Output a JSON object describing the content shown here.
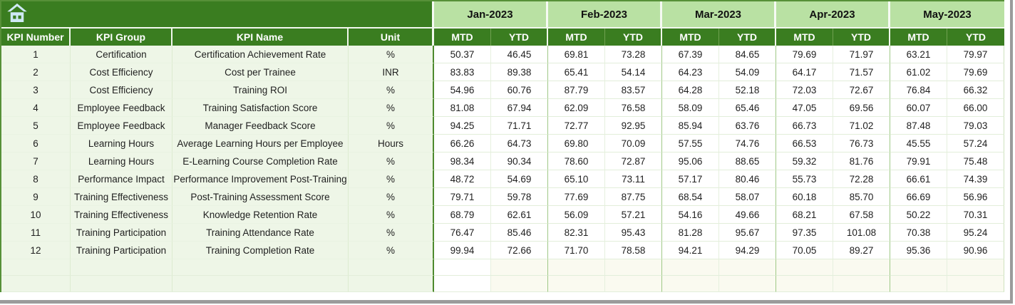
{
  "table": {
    "home_button": {
      "icon": "home-icon"
    },
    "left_headers": [
      "KPI Number",
      "KPI Group",
      "KPI Name",
      "Unit"
    ],
    "months": [
      "Jan-2023",
      "Feb-2023",
      "Mar-2023",
      "Apr-2023",
      "May-2023"
    ],
    "period_headers": [
      "MTD",
      "YTD"
    ],
    "value_column_order": [
      "Jan MTD",
      "Jan YTD",
      "Feb MTD",
      "Feb YTD",
      "Mar MTD",
      "Mar YTD",
      "Apr MTD",
      "Apr YTD",
      "May MTD",
      "May YTD"
    ],
    "rows": [
      {
        "number": "1",
        "group": "Certification",
        "name": "Certification Achievement Rate",
        "unit": "%",
        "values": [
          "50.37",
          "46.45",
          "69.81",
          "73.28",
          "67.39",
          "84.65",
          "79.69",
          "71.97",
          "63.21",
          "79.97"
        ]
      },
      {
        "number": "2",
        "group": "Cost Efficiency",
        "name": "Cost per Trainee",
        "unit": "INR",
        "values": [
          "83.83",
          "89.38",
          "65.41",
          "54.14",
          "64.23",
          "54.09",
          "64.17",
          "71.57",
          "61.02",
          "79.69"
        ]
      },
      {
        "number": "3",
        "group": "Cost Efficiency",
        "name": "Training ROI",
        "unit": "%",
        "values": [
          "54.96",
          "60.76",
          "87.79",
          "83.57",
          "64.28",
          "52.18",
          "72.03",
          "72.67",
          "76.84",
          "66.32"
        ]
      },
      {
        "number": "4",
        "group": "Employee Feedback",
        "name": "Training Satisfaction Score",
        "unit": "%",
        "values": [
          "81.08",
          "67.94",
          "62.09",
          "76.58",
          "58.09",
          "65.46",
          "47.05",
          "69.56",
          "60.07",
          "66.00"
        ]
      },
      {
        "number": "5",
        "group": "Employee Feedback",
        "name": "Manager Feedback Score",
        "unit": "%",
        "values": [
          "94.25",
          "71.71",
          "72.77",
          "92.95",
          "85.94",
          "63.76",
          "66.73",
          "71.02",
          "87.48",
          "79.03"
        ]
      },
      {
        "number": "6",
        "group": "Learning Hours",
        "name": "Average Learning Hours per Employee",
        "unit": "Hours",
        "values": [
          "66.26",
          "64.73",
          "69.80",
          "70.09",
          "57.55",
          "74.76",
          "66.53",
          "76.73",
          "45.55",
          "57.24"
        ]
      },
      {
        "number": "7",
        "group": "Learning Hours",
        "name": "E-Learning Course Completion Rate",
        "unit": "%",
        "values": [
          "98.34",
          "90.34",
          "78.60",
          "72.87",
          "95.06",
          "88.65",
          "59.32",
          "81.76",
          "79.91",
          "75.48"
        ]
      },
      {
        "number": "8",
        "group": "Performance Impact",
        "name": "Performance Improvement Post-Training",
        "unit": "%",
        "values": [
          "48.72",
          "54.69",
          "65.10",
          "73.11",
          "57.17",
          "80.46",
          "55.73",
          "72.28",
          "66.61",
          "74.39"
        ]
      },
      {
        "number": "9",
        "group": "Training Effectiveness",
        "name": "Post-Training Assessment Score",
        "unit": "%",
        "values": [
          "79.71",
          "59.78",
          "77.69",
          "87.75",
          "68.54",
          "58.07",
          "60.18",
          "85.70",
          "66.69",
          "56.96"
        ]
      },
      {
        "number": "10",
        "group": "Training Effectiveness",
        "name": "Knowledge Retention Rate",
        "unit": "%",
        "values": [
          "68.79",
          "62.61",
          "56.09",
          "57.21",
          "54.16",
          "49.66",
          "68.21",
          "67.58",
          "50.22",
          "70.31"
        ]
      },
      {
        "number": "11",
        "group": "Training Participation",
        "name": "Training Attendance Rate",
        "unit": "%",
        "values": [
          "76.47",
          "85.46",
          "82.31",
          "95.43",
          "81.28",
          "95.67",
          "97.35",
          "101.08",
          "70.38",
          "95.24"
        ]
      },
      {
        "number": "12",
        "group": "Training Participation",
        "name": "Training Completion Rate",
        "unit": "%",
        "values": [
          "99.94",
          "72.66",
          "71.70",
          "78.58",
          "94.21",
          "94.29",
          "70.05",
          "89.27",
          "95.36",
          "90.96"
        ]
      }
    ],
    "empty_rows": 2
  },
  "colors": {
    "header_dark_green": "#3a7d20",
    "month_light_green": "#b9e1a3",
    "row_tint_green": "#eef6e7",
    "grid_line": "#e2eeda",
    "month_group_line": "#9fc987",
    "outer_border_green": "#569038",
    "home_icon_blue": "#cfe9f5",
    "window_edge_gray": "#9b9b9b"
  }
}
